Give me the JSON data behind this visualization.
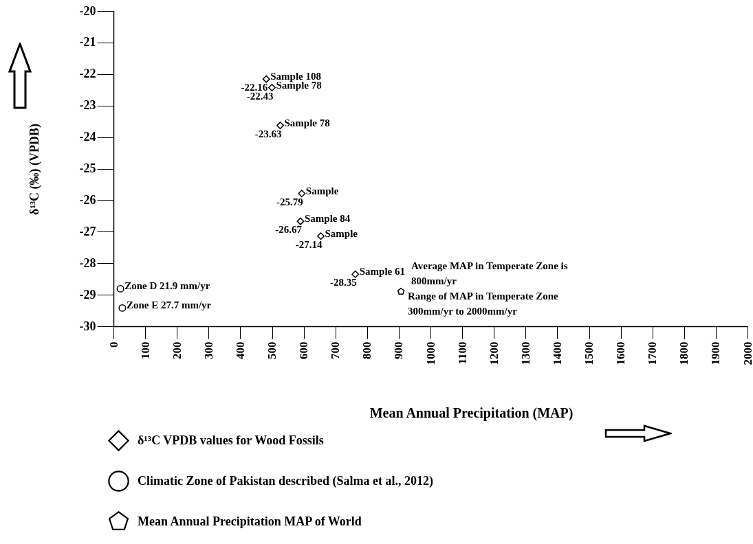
{
  "chart_data": {
    "type": "scatter",
    "xlabel": "Mean Annual Precipitation (MAP)",
    "ylabel": "δ¹³C (‰) (VPDB)",
    "xlim": [
      0,
      2000
    ],
    "xticks": [
      0,
      100,
      200,
      300,
      400,
      500,
      600,
      700,
      800,
      900,
      1000,
      1100,
      1200,
      1300,
      1400,
      1500,
      1600,
      1700,
      1800,
      1900,
      2000
    ],
    "ylim": [
      -30,
      -20
    ],
    "yticks": [
      -30,
      -29,
      -28,
      -27,
      -26,
      -25,
      -24,
      -23,
      -22,
      -21,
      -20
    ],
    "grid": false,
    "legend": "bottom left",
    "series": [
      {
        "name": "δ¹³C VPDB values for Wood Fossils",
        "color": "#000000",
        "marker": "diamond",
        "x": [
          482,
          500,
          526,
          594,
          590,
          654,
          763
        ],
        "values": [
          -22.16,
          -22.43,
          -23.63,
          -25.79,
          -26.67,
          -27.14,
          -28.35
        ],
        "value_labels": [
          "-22.16",
          "-22.43",
          "-23.63",
          "-25.79",
          "-26.67",
          "-27.14",
          "-28.35"
        ]
      },
      {
        "name": "Climatic Zone of Pakistan described (Salma et al., 2012)",
        "color": "#000000",
        "marker": "circle",
        "x": [
          22,
          28
        ],
        "values": [
          -28.81,
          -29.42
        ]
      },
      {
        "name": "Mean Annual Precipitation MAP of World",
        "color": "#000000",
        "x": [
          907
        ],
        "values": [
          -28.9
        ]
      }
    ],
    "annotations": [
      {
        "text": "Sample 108",
        "x": 482,
        "y": -22.16
      },
      {
        "text": "Sample 78",
        "x": 500,
        "y": -22.43
      },
      {
        "text": "Sample 78",
        "x": 526,
        "y": -23.63
      },
      {
        "text": "Sample",
        "x": 594,
        "y": -25.79
      },
      {
        "text": "Sample 84",
        "x": 590,
        "y": -26.67
      },
      {
        "text": "Sample",
        "x": 654,
        "y": -27.14
      },
      {
        "text": "Sample 61",
        "x": 763,
        "y": -28.35
      },
      {
        "text": "Zone D  21.9 mm/yr",
        "x": 22,
        "y": -28.81
      },
      {
        "text": "Zone E  27.7 mm/yr",
        "x": 28,
        "y": -29.42
      },
      "Average MAP in Temperate Zone is\n800mm/yr",
      "Range of MAP in Temperate Zone\n300mm/yr to 2000mm/yr"
    ]
  }
}
